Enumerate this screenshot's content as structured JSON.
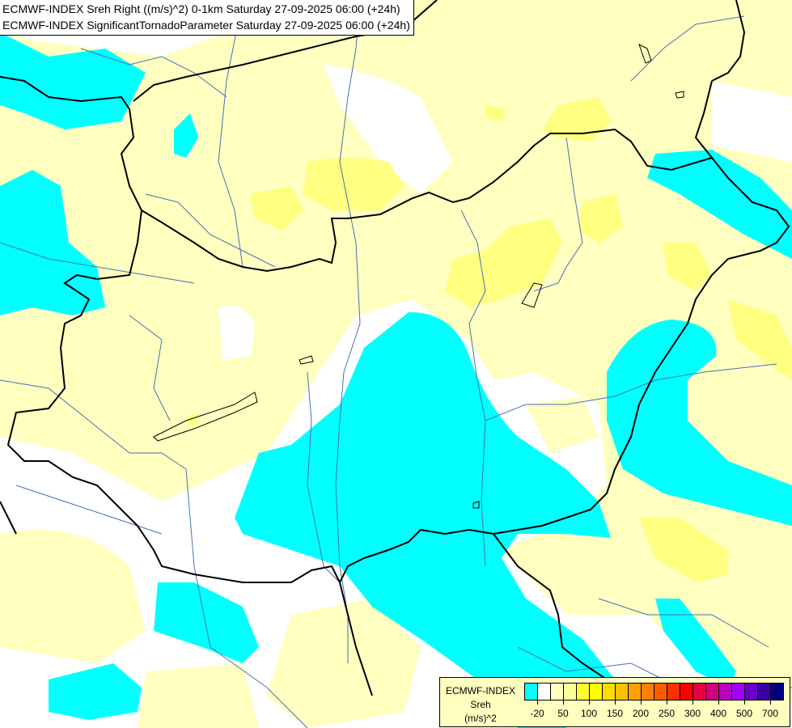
{
  "titles": [
    "ECMWF-INDEX Sreh Right ((m/s)^2) 0-1km Saturday 27-09-2025 06:00 (+24h)",
    "ECMWF-INDEX SignificantTornadoParameter Saturday 27-09-2025 06:00 (+24h)"
  ],
  "legend": {
    "source": "ECMWF-INDEX",
    "variable": "Sreh",
    "unit": "(m/s)^2",
    "colors": [
      "#00ffff",
      "#ffffff",
      "#ffffc0",
      "#ffff9a",
      "#ffff60",
      "#ffff30",
      "#ffff00",
      "#ffdc00",
      "#ffc000",
      "#ffa000",
      "#ff8000",
      "#ff5c00",
      "#ff3000",
      "#ff0000",
      "#e80040",
      "#d00080",
      "#b800c0",
      "#a000ff",
      "#6a00c8",
      "#3c00a0",
      "#000080"
    ],
    "tick_labels": [
      "-20",
      "50",
      "100",
      "150",
      "200",
      "250",
      "300",
      "400",
      "500",
      "700"
    ]
  },
  "map_colors": {
    "background": "#ffffc0",
    "low": "#ffffff",
    "negative": "#00ffff",
    "moderate": "#ffff80",
    "border": "#000000",
    "river": "#4b6fb8"
  }
}
